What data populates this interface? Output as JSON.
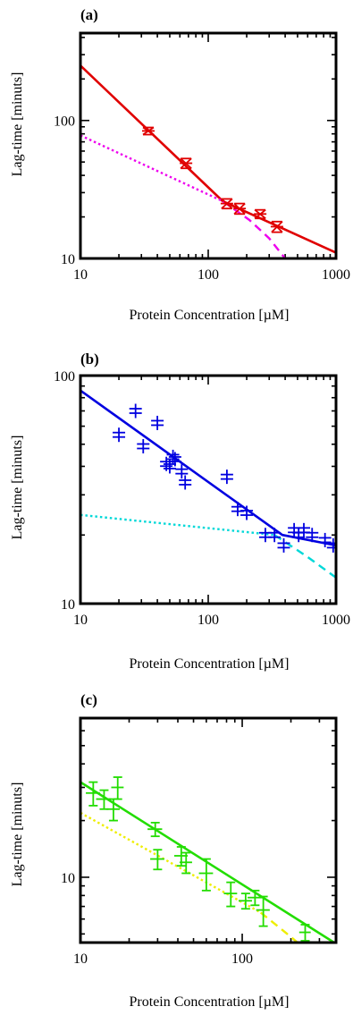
{
  "chart_data": [
    {
      "type": "line",
      "panel_label": "(a)",
      "xlabel": "Protein Concentration [µM]",
      "ylabel": "Lag-time [minuts]",
      "xscale": "log",
      "yscale": "log",
      "xlim": [
        10,
        1000
      ],
      "ylim": [
        10,
        430
      ],
      "xticklabels": [
        "10",
        "100",
        "1000"
      ],
      "xtickvalues": [
        10,
        100,
        1000
      ],
      "yticklabels": [
        "10",
        "100"
      ],
      "ytickvalues": [
        10,
        100
      ],
      "grid": false,
      "series": [
        {
          "role": "points",
          "marker": "hourglass",
          "color": "#e00000",
          "points": [
            {
              "x": 34,
              "y": 84,
              "err": 5
            },
            {
              "x": 67,
              "y": 49,
              "err": 4
            },
            {
              "x": 140,
              "y": 25,
              "err": 2
            },
            {
              "x": 176,
              "y": 23,
              "err": 2
            },
            {
              "x": 255,
              "y": 21,
              "err": 1.5
            },
            {
              "x": 345,
              "y": 17,
              "err": 1.5
            }
          ]
        },
        {
          "role": "fit",
          "style": "solid",
          "color": "#e00000",
          "x": [
            10,
            130,
            1000
          ],
          "y": [
            250,
            26,
            11
          ]
        },
        {
          "role": "fit",
          "style": "dotted",
          "color": "#ee00ee",
          "x": [
            10,
            130
          ],
          "y": [
            78,
            26
          ]
        },
        {
          "role": "fit",
          "style": "dashed",
          "color": "#ee00ee",
          "x": [
            130,
            210,
            300,
            400
          ],
          "y": [
            26,
            19,
            14,
            10
          ]
        }
      ]
    },
    {
      "type": "line",
      "panel_label": "(b)",
      "xlabel": "Protein Concentration [µM]",
      "ylabel": "Lag-time [minuts]",
      "xscale": "log",
      "yscale": "log",
      "xlim": [
        10,
        1000
      ],
      "ylim": [
        10,
        100
      ],
      "xticklabels": [
        "10",
        "100",
        "1000"
      ],
      "xtickvalues": [
        10,
        100,
        1000
      ],
      "yticklabels": [
        "10",
        "100"
      ],
      "ytickvalues": [
        10,
        100
      ],
      "grid": false,
      "series": [
        {
          "role": "points",
          "marker": "double-cross",
          "color": "#0000e0",
          "points": [
            {
              "x": 20,
              "y": 55
            },
            {
              "x": 27,
              "y": 70
            },
            {
              "x": 31,
              "y": 49
            },
            {
              "x": 40,
              "y": 62
            },
            {
              "x": 47,
              "y": 41
            },
            {
              "x": 50,
              "y": 40
            },
            {
              "x": 53,
              "y": 44
            },
            {
              "x": 55,
              "y": 43
            },
            {
              "x": 62,
              "y": 38
            },
            {
              "x": 66,
              "y": 34
            },
            {
              "x": 140,
              "y": 36
            },
            {
              "x": 170,
              "y": 26
            },
            {
              "x": 200,
              "y": 25
            },
            {
              "x": 280,
              "y": 20
            },
            {
              "x": 330,
              "y": 20
            },
            {
              "x": 390,
              "y": 18
            },
            {
              "x": 470,
              "y": 21
            },
            {
              "x": 510,
              "y": 20
            },
            {
              "x": 560,
              "y": 21
            },
            {
              "x": 650,
              "y": 20
            },
            {
              "x": 820,
              "y": 19
            },
            {
              "x": 950,
              "y": 18
            },
            {
              "x": 1050,
              "y": 18
            }
          ]
        },
        {
          "role": "fit",
          "style": "solid",
          "color": "#0000e0",
          "x": [
            10,
            300,
            380,
            1000
          ],
          "y": [
            86,
            22,
            20,
            18
          ]
        },
        {
          "role": "fit",
          "style": "dotted",
          "color": "#00d8d8",
          "x": [
            10,
            330
          ],
          "y": [
            24.5,
            20
          ]
        },
        {
          "role": "fit",
          "style": "dashed",
          "color": "#00d8d8",
          "x": [
            330,
            600,
            1000
          ],
          "y": [
            20,
            16,
            13
          ]
        }
      ]
    },
    {
      "type": "line",
      "panel_label": "(c)",
      "xlabel": "Protein Concentration [µM]",
      "ylabel": "Lag-time [minuts]",
      "xscale": "log",
      "yscale": "log",
      "xlim": [
        10,
        380
      ],
      "ylim": [
        4.5,
        70
      ],
      "xticklabels": [
        "10",
        "100"
      ],
      "xtickvalues": [
        10,
        100
      ],
      "yticklabels": [
        "10"
      ],
      "ytickvalues": [
        10
      ],
      "grid": false,
      "series": [
        {
          "role": "points",
          "marker": "cross",
          "color": "#22dd00",
          "points": [
            {
              "x": 12,
              "y": 28,
              "ex": 1.2,
              "ey": 4
            },
            {
              "x": 14,
              "y": 26,
              "ex": 1.5,
              "ey": 3
            },
            {
              "x": 16,
              "y": 23,
              "ex": 1.5,
              "ey": 3
            },
            {
              "x": 17,
              "y": 30,
              "ex": 1.5,
              "ey": 4
            },
            {
              "x": 29,
              "y": 18,
              "ex": 3,
              "ey": 1.5
            },
            {
              "x": 30,
              "y": 12.5,
              "ex": 3,
              "ey": 1.5
            },
            {
              "x": 42,
              "y": 13,
              "ex": 4,
              "ey": 1.5
            },
            {
              "x": 45,
              "y": 12,
              "ex": 4,
              "ey": 1.5
            },
            {
              "x": 60,
              "y": 10.5,
              "ex": 6,
              "ey": 2
            },
            {
              "x": 85,
              "y": 8.2,
              "ex": 8,
              "ey": 1.2
            },
            {
              "x": 105,
              "y": 7.5,
              "ex": 10,
              "ey": 0.7
            },
            {
              "x": 120,
              "y": 7.8,
              "ex": 12,
              "ey": 0.7
            },
            {
              "x": 135,
              "y": 6.7,
              "ex": 13,
              "ey": 1.2
            },
            {
              "x": 245,
              "y": 5.1,
              "ex": 20,
              "ey": 0.5
            }
          ]
        },
        {
          "role": "fit",
          "style": "solid",
          "color": "#22dd00",
          "x": [
            10,
            370
          ],
          "y": [
            32,
            4.5
          ]
        },
        {
          "role": "fit",
          "style": "dotted",
          "color": "#eeee00",
          "x": [
            10,
            130
          ],
          "y": [
            22,
            6.5
          ]
        },
        {
          "role": "fit",
          "style": "dashed",
          "color": "#eeee00",
          "x": [
            130,
            190,
            220
          ],
          "y": [
            6.5,
            5.0,
            4.5
          ]
        }
      ]
    }
  ]
}
